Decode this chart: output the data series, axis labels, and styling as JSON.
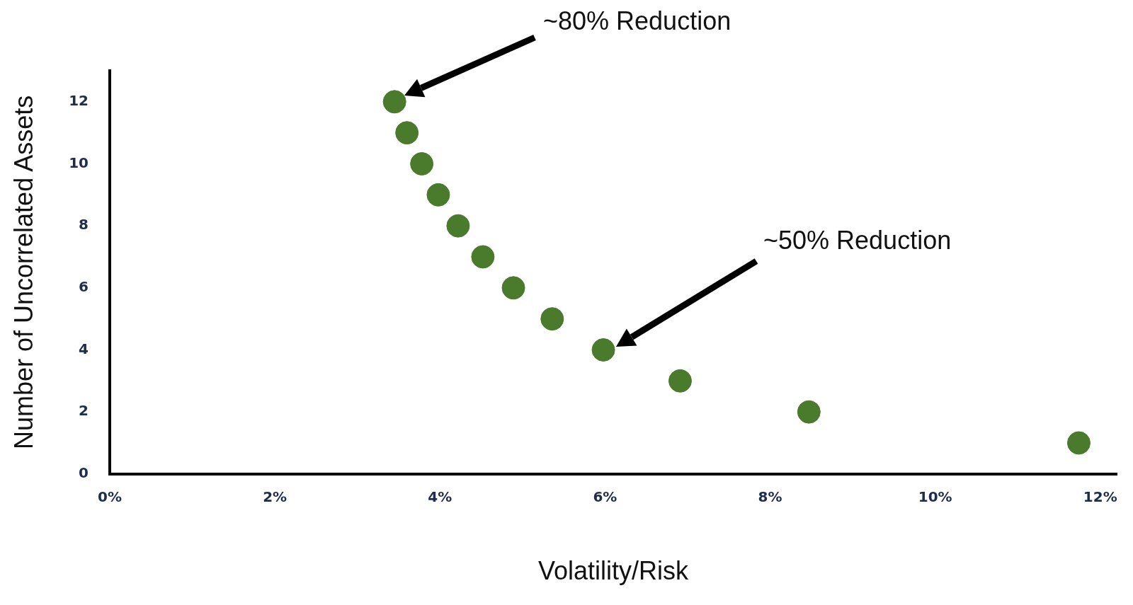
{
  "chart_data": {
    "type": "scatter",
    "xlabel": "Volatility/Risk",
    "ylabel": "Number of Uncorrelated Assets",
    "x": [
      3.45,
      3.6,
      3.78,
      3.98,
      4.22,
      4.52,
      4.89,
      5.36,
      5.98,
      6.91,
      8.47,
      11.74
    ],
    "series": [
      {
        "color": "#4a7a2c",
        "values": [
          12,
          11,
          10,
          9,
          8,
          7,
          6,
          5,
          4,
          3,
          2,
          1
        ]
      }
    ],
    "marker": "circle",
    "grid": false,
    "legend": false,
    "xlim": [
      0,
      12.2
    ],
    "ylim": [
      0,
      13
    ],
    "xticks": [
      {
        "value": 0,
        "label": "0%"
      },
      {
        "value": 2,
        "label": "2%"
      },
      {
        "value": 4,
        "label": "4%"
      },
      {
        "value": 6,
        "label": "6%"
      },
      {
        "value": 8,
        "label": "8%"
      },
      {
        "value": 10,
        "label": "10%"
      },
      {
        "value": 12,
        "label": "12%"
      }
    ],
    "yticks": [
      0,
      2,
      4,
      6,
      8,
      10,
      12
    ],
    "annotations": [
      "~80% Reduction",
      "~50% Reduction"
    ]
  }
}
